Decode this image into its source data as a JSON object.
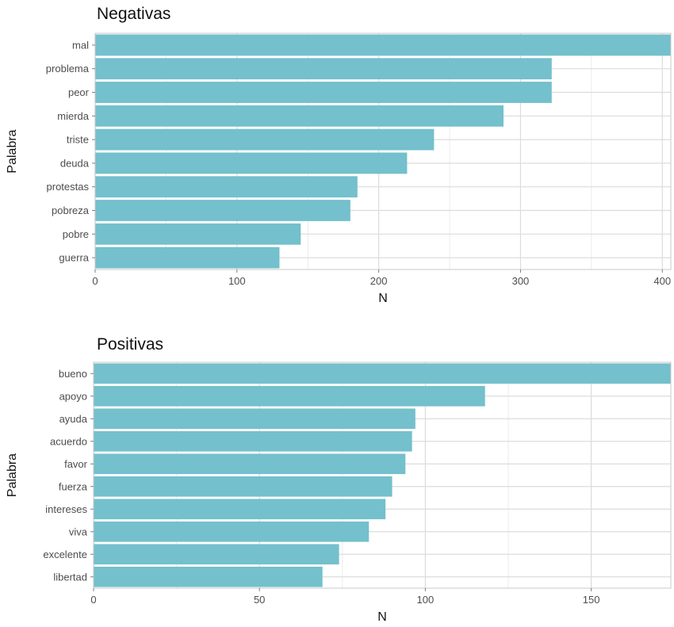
{
  "chart_data": [
    {
      "type": "bar",
      "orientation": "horizontal",
      "title": "Negativas",
      "xlabel": "N",
      "ylabel": "Palabra",
      "categories": [
        "mal",
        "problema",
        "peor",
        "mierda",
        "triste",
        "deuda",
        "protestas",
        "pobreza",
        "pobre",
        "guerra"
      ],
      "values": [
        406,
        322,
        322,
        288,
        239,
        220,
        185,
        180,
        145,
        130
      ],
      "xlim": [
        0,
        406
      ],
      "xticks": [
        0,
        100,
        200,
        300,
        400
      ],
      "grid": true,
      "bar_color": "#74c0cc"
    },
    {
      "type": "bar",
      "orientation": "horizontal",
      "title": "Positivas",
      "xlabel": "N",
      "ylabel": "Palabra",
      "categories": [
        "bueno",
        "apoyo",
        "ayuda",
        "acuerdo",
        "favor",
        "fuerza",
        "intereses",
        "viva",
        "excelente",
        "libertad"
      ],
      "values": [
        174,
        118,
        97,
        96,
        94,
        90,
        88,
        83,
        74,
        69
      ],
      "xlim": [
        0,
        174
      ],
      "xticks": [
        0,
        50,
        100,
        150
      ],
      "grid": true,
      "bar_color": "#74c0cc"
    }
  ]
}
